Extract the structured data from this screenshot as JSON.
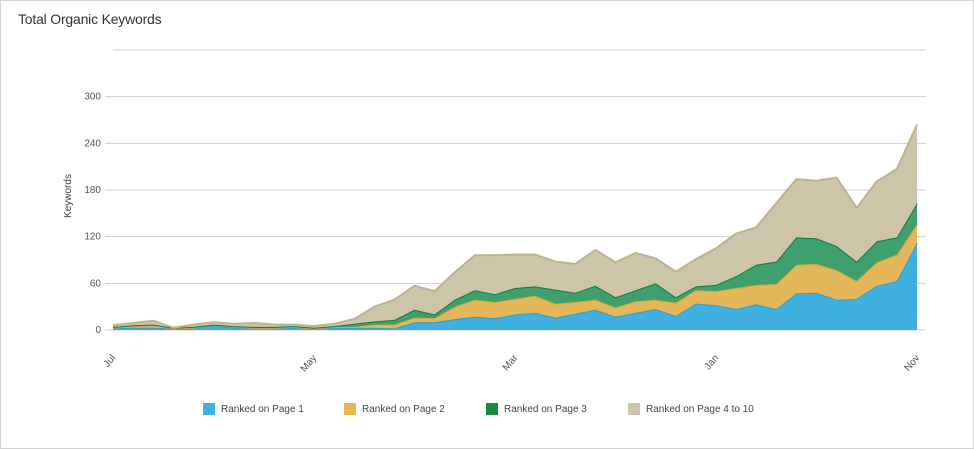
{
  "chart_data": {
    "type": "area",
    "stacked": true,
    "title": "Total Organic Keywords",
    "xlabel": "",
    "ylabel": "Keywords",
    "ylim": [
      0,
      360
    ],
    "y_ticks": [
      0,
      60,
      120,
      180,
      240,
      300
    ],
    "grid": true,
    "legend_position": "bottom",
    "x_tick_labels": [
      {
        "index": 0,
        "label": "Jul"
      },
      {
        "index": 10,
        "label": "May"
      },
      {
        "index": 20,
        "label": "Mar"
      },
      {
        "index": 30,
        "label": "Jan"
      },
      {
        "index": 40,
        "label": "Nov"
      }
    ],
    "series": [
      {
        "name": "Ranked on Page 1",
        "color": "#3fb0e0",
        "stroke": "#2a9fd6",
        "values": [
          2,
          3,
          3,
          2,
          2,
          6,
          3,
          3,
          3,
          3,
          2,
          3,
          3,
          3,
          2,
          10,
          10,
          14,
          17,
          15,
          20,
          22,
          16,
          21,
          26,
          17,
          22,
          27,
          18,
          34,
          32,
          27,
          33,
          27,
          47,
          48,
          39,
          40,
          57,
          63,
          112
        ]
      },
      {
        "name": "Ranked on Page 2",
        "color": "#e3b75a",
        "stroke": "#d9a73a",
        "values": [
          1,
          2,
          3,
          0,
          1,
          1,
          1,
          0,
          0,
          1,
          0,
          1,
          1,
          4,
          5,
          6,
          5,
          16,
          22,
          21,
          20,
          22,
          18,
          15,
          13,
          12,
          15,
          12,
          17,
          17,
          18,
          27,
          25,
          32,
          37,
          37,
          38,
          23,
          30,
          34,
          24
        ]
      },
      {
        "name": "Ranked on Page 3",
        "color": "#3fa06e",
        "stroke": "#137a3e",
        "values": [
          1,
          1,
          1,
          1,
          1,
          0,
          1,
          1,
          1,
          1,
          1,
          1,
          4,
          4,
          6,
          10,
          5,
          9,
          12,
          10,
          14,
          12,
          18,
          12,
          18,
          13,
          14,
          21,
          7,
          5,
          8,
          15,
          26,
          29,
          35,
          33,
          31,
          25,
          27,
          22,
          27
        ]
      },
      {
        "name": "Ranked on Page 4 to 10",
        "color": "#cdc5a9",
        "stroke": "#bdb393",
        "values": [
          2,
          3,
          5,
          0,
          3,
          3,
          3,
          5,
          3,
          2,
          2,
          3,
          6,
          19,
          26,
          31,
          30,
          35,
          45,
          50,
          43,
          41,
          36,
          37,
          46,
          45,
          48,
          32,
          33,
          35,
          47,
          55,
          48,
          75,
          75,
          74,
          88,
          69,
          77,
          88,
          101
        ]
      }
    ]
  }
}
